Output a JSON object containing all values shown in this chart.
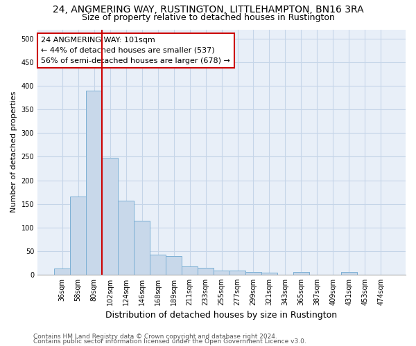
{
  "title1": "24, ANGMERING WAY, RUSTINGTON, LITTLEHAMPTON, BN16 3RA",
  "title2": "Size of property relative to detached houses in Rustington",
  "xlabel": "Distribution of detached houses by size in Rustington",
  "ylabel": "Number of detached properties",
  "categories": [
    "36sqm",
    "58sqm",
    "80sqm",
    "102sqm",
    "124sqm",
    "146sqm",
    "168sqm",
    "189sqm",
    "211sqm",
    "233sqm",
    "255sqm",
    "277sqm",
    "299sqm",
    "321sqm",
    "343sqm",
    "365sqm",
    "387sqm",
    "409sqm",
    "431sqm",
    "453sqm",
    "474sqm"
  ],
  "values": [
    13,
    166,
    390,
    248,
    157,
    114,
    43,
    39,
    18,
    15,
    9,
    8,
    6,
    4,
    0,
    5,
    0,
    0,
    5,
    0,
    0
  ],
  "bar_color": "#c8d8ea",
  "bar_edge_color": "#7bafd4",
  "bar_edge_width": 0.7,
  "vline_x_index": 3,
  "vline_color": "#cc0000",
  "vline_label_title": "24 ANGMERING WAY: 101sqm",
  "vline_label_line1": "← 44% of detached houses are smaller (537)",
  "vline_label_line2": "56% of semi-detached houses are larger (678) →",
  "box_edge_color": "#cc0000",
  "ylim": [
    0,
    520
  ],
  "yticks": [
    0,
    50,
    100,
    150,
    200,
    250,
    300,
    350,
    400,
    450,
    500
  ],
  "grid_color": "#c5d5e8",
  "background_color": "#e8eff8",
  "footer1": "Contains HM Land Registry data © Crown copyright and database right 2024.",
  "footer2": "Contains public sector information licensed under the Open Government Licence v3.0.",
  "title1_fontsize": 10,
  "title2_fontsize": 9,
  "xlabel_fontsize": 9,
  "ylabel_fontsize": 8,
  "tick_fontsize": 7,
  "annot_fontsize": 8,
  "footer_fontsize": 6.5
}
